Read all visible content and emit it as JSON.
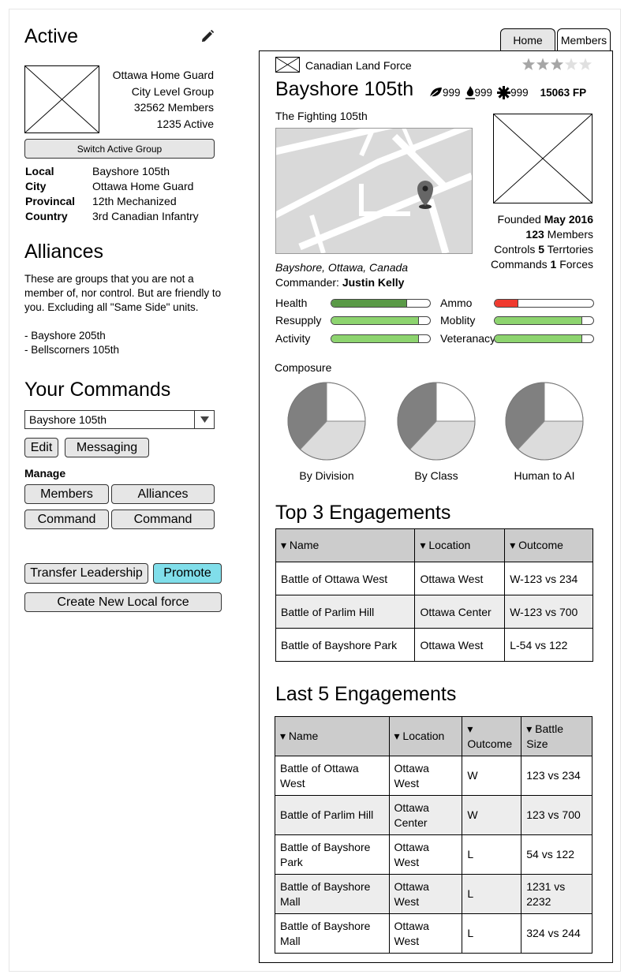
{
  "left": {
    "active_title": "Active",
    "group_info": [
      "Ottawa Home Guard",
      "City Level Group",
      "32562 Members",
      "1235 Active"
    ],
    "switch_button": "Switch Active Group",
    "levels": [
      {
        "key": "Local",
        "value": "Bayshore 105th"
      },
      {
        "key": "City",
        "value": "Ottawa Home Guard"
      },
      {
        "key": "Provincal",
        "value": "12th Mechanized"
      },
      {
        "key": "Country",
        "value": "3rd Canadian Infantry"
      }
    ],
    "alliances_title": "Alliances",
    "alliances_desc": [
      "These are groups that you are not a",
      "member of, nor control. But are friendly to",
      "you. Excluding all \"Same Side\" units."
    ],
    "alliance_items": [
      "- Bayshore 205th",
      "- Bellscorners 105th"
    ],
    "commands_title": "Your Commands",
    "command_select": "Bayshore 105th",
    "edit_button": "Edit",
    "messaging_button": "Messaging",
    "manage_label": "Manage",
    "members_button": "Members",
    "alliances_button": "Alliances",
    "command_button_1": "Command",
    "command_button_2": "Command",
    "transfer_button": "Transfer Leadership",
    "promote_button": "Promote",
    "create_button": "Create New Local force"
  },
  "tabs": {
    "home": "Home",
    "members": "Members"
  },
  "card": {
    "org": "Canadian Land Force",
    "rating": 3,
    "rating_max": 5,
    "name": "Bayshore 105th",
    "stats": [
      "999",
      "999",
      "999"
    ],
    "fp": "15063 FP",
    "motto": "The Fighting 105th",
    "location": "Bayshore, Ottawa, Canada",
    "commander_label": "Commander:",
    "commander_name": "Justin Kelly",
    "facts": [
      {
        "pre": "Founded ",
        "bold": "May 2016",
        "post": ""
      },
      {
        "pre": "",
        "bold": "123",
        "post": " Members"
      },
      {
        "pre": "Controls ",
        "bold": "5",
        "post": " Terrtories"
      },
      {
        "pre": "Commands ",
        "bold": "1",
        "post": " Forces"
      }
    ],
    "metrics": [
      {
        "label": "Health",
        "level": 0.76,
        "color": "#5a9a47"
      },
      {
        "label": "Ammo",
        "level": 0.23,
        "color": "#f03a2f"
      },
      {
        "label": "Resupply",
        "level": 0.88,
        "color": "#8dd46f"
      },
      {
        "label": "Moblity",
        "level": 0.88,
        "color": "#8dd46f"
      },
      {
        "label": "Activity",
        "level": 0.88,
        "color": "#8dd46f"
      },
      {
        "label": "Veteranacy",
        "level": 0.88,
        "color": "#8dd46f"
      }
    ],
    "composure_label": "Composure",
    "pies": [
      {
        "label": "By Division",
        "slices": [
          0.25,
          0.37,
          0.38
        ]
      },
      {
        "label": "By Class",
        "slices": [
          0.25,
          0.37,
          0.38
        ]
      },
      {
        "label": "Human to AI",
        "slices": [
          0.25,
          0.37,
          0.38
        ]
      }
    ],
    "pie_colors": [
      "#ffffff",
      "#dcdcdc",
      "#808080"
    ],
    "top3_title": "Top 3 Engagements",
    "top3_headers": [
      "▾ Name",
      "▾ Location",
      "▾ Outcome"
    ],
    "top3_rows": [
      [
        "Battle of Ottawa West",
        "Ottawa West",
        "W-123 vs 234"
      ],
      [
        "Battle of Parlim Hill",
        "Ottawa Center",
        "W-123 vs 700"
      ],
      [
        "Battle of Bayshore Park",
        "Ottawa West",
        "L-54 vs 122"
      ]
    ],
    "last5_title": "Last 5 Engagements",
    "last5_headers": [
      "▾ Name",
      "▾ Location",
      "▾ Outcome",
      "▾ Battle Size"
    ],
    "last5_rows": [
      [
        "Battle of Ottawa West",
        "Ottawa West",
        "W",
        "123 vs 234"
      ],
      [
        "Battle of Parlim Hill",
        "Ottawa Center",
        "W",
        "123 vs 700"
      ],
      [
        "Battle of Bayshore Park",
        "Ottawa West",
        "L",
        "54 vs 122"
      ],
      [
        "Battle of Bayshore Mall",
        "Ottawa West",
        "L",
        "1231 vs 2232"
      ],
      [
        "Battle of Bayshore Mall",
        "Ottawa West",
        "L",
        "324 vs 244"
      ]
    ]
  },
  "icons": {
    "edit": "pencil-icon",
    "org": "placeholder-image-icon",
    "stat1": "leaf-icon",
    "stat2": "flame-icon",
    "stat3": "gear-icon",
    "dropdown": "triangle-down-icon"
  }
}
